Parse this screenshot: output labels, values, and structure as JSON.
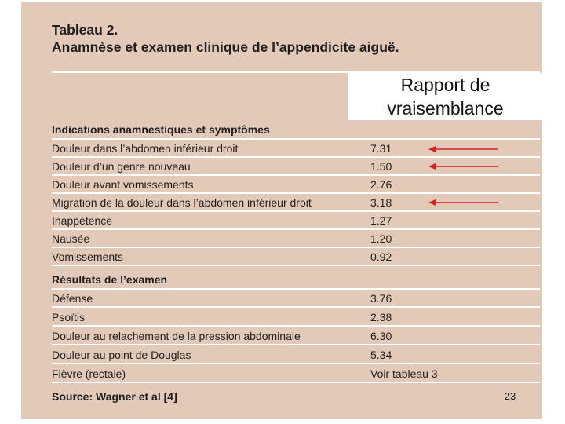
{
  "title": "Tableau 2.",
  "subtitle": "Anamnèse et examen clinique de l’appendicite aiguë.",
  "ratio_header": [
    "Rapport de",
    "vraisemblance"
  ],
  "sections": [
    {
      "heading": "Indications anamnestiques et symptômes",
      "rows": [
        {
          "label": "Douleur dans l’abdomen inférieur droit",
          "value": "7.31"
        },
        {
          "label": "Douleur d’un genre nouveau",
          "value": "1.50"
        },
        {
          "label": "Douleur avant vomissements",
          "value": "2.76"
        },
        {
          "label": "Migration de la douleur dans l’abdomen inférieur droit",
          "value": "3.18"
        },
        {
          "label": "Inappétence",
          "value": "1.27"
        },
        {
          "label": "Nausée",
          "value": "1.20"
        },
        {
          "label": "Vomissements",
          "value": "0.92"
        }
      ]
    },
    {
      "heading": "Résultats de l’examen",
      "rows": [
        {
          "label": "Défense",
          "value": "3.76"
        },
        {
          "label": "Psoïtis",
          "value": "2.38"
        },
        {
          "label": "Douleur au relachement de la pression abdominale",
          "value": "6.30"
        },
        {
          "label": "Douleur au point de Douglas",
          "value": "5.34"
        },
        {
          "label": "Fièvre (rectale)",
          "value": "Voir tableau 3"
        }
      ]
    }
  ],
  "source": "Source: Wagner et al [4]",
  "page_number": "23",
  "colors": {
    "panel": "#e2c9b8",
    "arrow": "#d62020"
  }
}
